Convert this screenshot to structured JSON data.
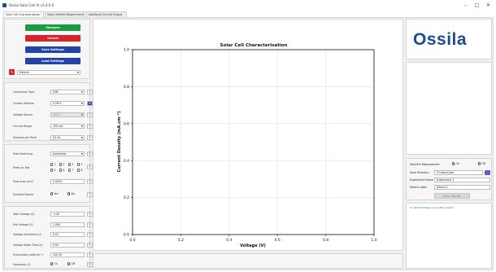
{
  "window": {
    "title": "Ossila Solar Cell IV v1.0.0.0"
  },
  "tabs": [
    "Solar Cell Characterisation",
    "Solar Lifetime Measurement",
    "Additional Current Output"
  ],
  "buttons": {
    "measure": "Measure",
    "cancel": "Cancel",
    "save_settings": "Save Settings",
    "load_settings": "Load Settings"
  },
  "colors": {
    "measure": "#1a9c3e",
    "cancel": "#d8222a",
    "settings": "#2244aa",
    "accent": "#1a4d8f",
    "status": "#1a8a3a"
  },
  "preset": {
    "value": "Default"
  },
  "connection": [
    {
      "label": "Connection Type",
      "value": "USB",
      "type": "combo"
    },
    {
      "label": "Custom Address",
      "value": "COM 5",
      "type": "combo-btn"
    },
    {
      "label": "Voltage Source",
      "value": "SMU 1",
      "type": "combo-disabled"
    },
    {
      "label": "Current Range",
      "value": "100 mA",
      "type": "combo"
    },
    {
      "label": "Samples per Point",
      "value": "20 Hz",
      "type": "combo"
    }
  ],
  "pixels": {
    "pixel_switching_label": "Pixel Switching",
    "pixel_switching_value": "Automatic",
    "pixels_to_test_label": "Pixels to Test",
    "pixel_names": [
      "1",
      "2",
      "3",
      "4",
      "5",
      "6",
      "7",
      "8"
    ],
    "pixel_area_label": "Pixel area (cm²)",
    "pixel_area_value": "0.0004",
    "inverted_device_label": "Inverted Device",
    "yes": "Yes",
    "no": "No"
  },
  "sweep": [
    {
      "label": "Start Voltage (V)",
      "value": "-1.00"
    },
    {
      "label": "End Voltage (V)",
      "value": "1.000"
    },
    {
      "label": "Voltage Increment (V)",
      "value": "0.02"
    },
    {
      "label": "Voltage Settle Time (s)",
      "value": "0.00"
    },
    {
      "label": "Illumination (mW.cm⁻²)",
      "value": "100.00"
    }
  ],
  "hysteresis": {
    "label": "Hysteresis (!)",
    "on": "On",
    "off": "Off"
  },
  "chart_data": {
    "type": "line",
    "title": "Solar Cell Characterisation",
    "xlabel": "Voltage (V)",
    "ylabel": "Current Density (mA.cm⁻²)",
    "xlim": [
      0.0,
      1.0
    ],
    "ylim": [
      0.0,
      1.0
    ],
    "xticks": [
      "0.0",
      "0.2",
      "0.4",
      "0.6",
      "0.8",
      "1.0"
    ],
    "yticks": [
      "0.0",
      "0.2",
      "0.4",
      "0.6",
      "0.8",
      "1.0"
    ],
    "grid": true,
    "series": []
  },
  "logo": {
    "text": "Ossila"
  },
  "dark": {
    "label": "Dark/Pre Measurement",
    "on": "On",
    "off": "Off",
    "save_directory_label": "Save Directory",
    "save_directory_value": "C:\\Users\\User",
    "experiment_name_label": "Experiment Name",
    "experiment_name_value": "Experiment 1",
    "device_label_label": "Device Label",
    "device_label_value": "Device 1",
    "save_results": "Save Results"
  },
  "status": {
    "text": "11:09:59  Voltage source/file loaded"
  }
}
